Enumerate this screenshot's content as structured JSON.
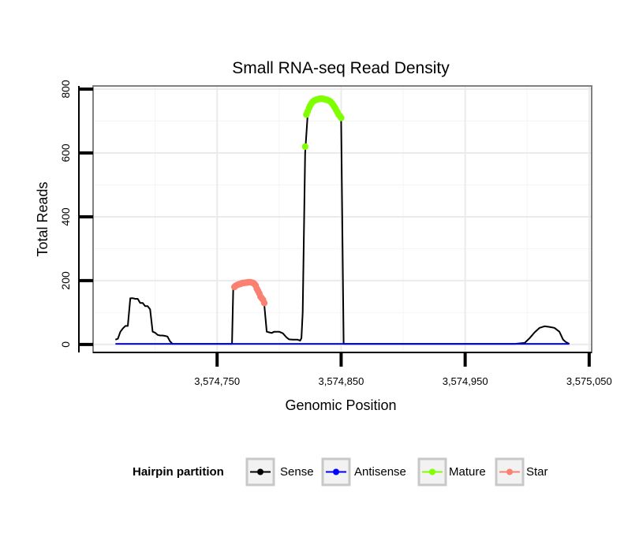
{
  "chart_data": {
    "type": "line",
    "title": "Small RNA-seq Read Density",
    "xlabel": "Genomic Position",
    "ylabel": "Total Reads",
    "xlim": [
      3574650,
      3575052
    ],
    "ylim": [
      -25,
      810
    ],
    "x_ticks": [
      3574750,
      3574850,
      3574950,
      3575050
    ],
    "x_tick_labels": [
      "3,574,750",
      "3,574,850",
      "3,574,950",
      "3,575,050"
    ],
    "y_ticks": [
      0,
      200,
      400,
      600,
      800
    ],
    "y_tick_labels": [
      "0",
      "200",
      "400",
      "600",
      "800"
    ],
    "grid": true,
    "legend": {
      "title": "Hairpin partition",
      "position": "bottom",
      "entries": [
        {
          "name": "Sense",
          "color": "#000000"
        },
        {
          "name": "Antisense",
          "color": "#0000ff"
        },
        {
          "name": "Mature",
          "color": "#7fff00"
        },
        {
          "name": "Star",
          "color": "#fa8072"
        }
      ]
    },
    "series": [
      {
        "name": "Sense",
        "color": "#000000",
        "mark": "line",
        "x": [
          3574668,
          3574670,
          3574672,
          3574674,
          3574676,
          3574678,
          3574680,
          3574682,
          3574684,
          3574686,
          3574688,
          3574690,
          3574692,
          3574694,
          3574696,
          3574698,
          3574700,
          3574702,
          3574704,
          3574706,
          3574708,
          3574710,
          3574712,
          3574714,
          3574716,
          3574717,
          3574720,
          3574723,
          3574730,
          3574740,
          3574750,
          3574760,
          3574762,
          3574763,
          3574765,
          3574770,
          3574775,
          3574781,
          3574784,
          3574786,
          3574788,
          3574790,
          3574792,
          3574794,
          3574796,
          3574800,
          3574803,
          3574806,
          3574808,
          3574811,
          3574813,
          3574815,
          3574817,
          3574818,
          3574819,
          3574821,
          3574823,
          3574826,
          3574829,
          3574832,
          3574835,
          3574838,
          3574841,
          3574844,
          3574847,
          3574850,
          3574852,
          3574854,
          3574856,
          3574860,
          3574880,
          3574900,
          3574950,
          3574990,
          3574998,
          3575002,
          3575006,
          3575010,
          3575014,
          3575018,
          3575022,
          3575026,
          3575029,
          3575031,
          3575034
        ],
        "y": [
          15,
          18,
          40,
          50,
          58,
          58,
          145,
          145,
          143,
          143,
          130,
          130,
          120,
          120,
          110,
          40,
          37,
          30,
          28,
          28,
          27,
          25,
          10,
          2,
          2,
          2,
          2,
          2,
          2,
          2,
          2,
          2,
          2,
          180,
          185,
          195,
          195,
          190,
          165,
          145,
          125,
          40,
          38,
          36,
          40,
          40,
          35,
          22,
          16,
          15,
          15,
          15,
          12,
          20,
          100,
          600,
          720,
          750,
          762,
          768,
          770,
          768,
          762,
          750,
          720,
          710,
          2,
          2,
          2,
          2,
          2,
          2,
          2,
          2,
          5,
          20,
          38,
          52,
          57,
          55,
          52,
          40,
          15,
          8,
          2
        ]
      },
      {
        "name": "Antisense",
        "color": "#0000ff",
        "mark": "line",
        "x": [
          3574668,
          3575034
        ],
        "y": [
          2,
          2
        ]
      },
      {
        "name": "Mature",
        "color": "#7fff00",
        "mark": "points",
        "x": [
          3574821,
          3574822,
          3574823,
          3574824,
          3574825,
          3574826,
          3574827,
          3574828,
          3574829,
          3574830,
          3574831,
          3574832,
          3574833,
          3574834,
          3574835,
          3574836,
          3574837,
          3574838,
          3574839,
          3574840,
          3574841,
          3574842,
          3574843,
          3574844,
          3574845,
          3574846,
          3574847,
          3574848,
          3574849,
          3574850
        ],
        "y": [
          620,
          720,
          730,
          740,
          748,
          755,
          760,
          763,
          765,
          767,
          768,
          769,
          770,
          770,
          770,
          769,
          768,
          767,
          766,
          764,
          762,
          758,
          754,
          748,
          742,
          735,
          728,
          720,
          716,
          710
        ]
      },
      {
        "name": "Star",
        "color": "#fa8072",
        "mark": "points",
        "x": [
          3574764,
          3574765,
          3574766,
          3574767,
          3574768,
          3574769,
          3574770,
          3574771,
          3574772,
          3574773,
          3574774,
          3574775,
          3574776,
          3574777,
          3574778,
          3574779,
          3574780,
          3574781,
          3574782,
          3574783,
          3574784,
          3574785,
          3574786,
          3574787,
          3574788
        ],
        "y": [
          180,
          184,
          186,
          188,
          189,
          190,
          192,
          193,
          193,
          194,
          194,
          195,
          195,
          195,
          194,
          193,
          190,
          185,
          175,
          168,
          160,
          150,
          145,
          140,
          130
        ]
      }
    ]
  }
}
